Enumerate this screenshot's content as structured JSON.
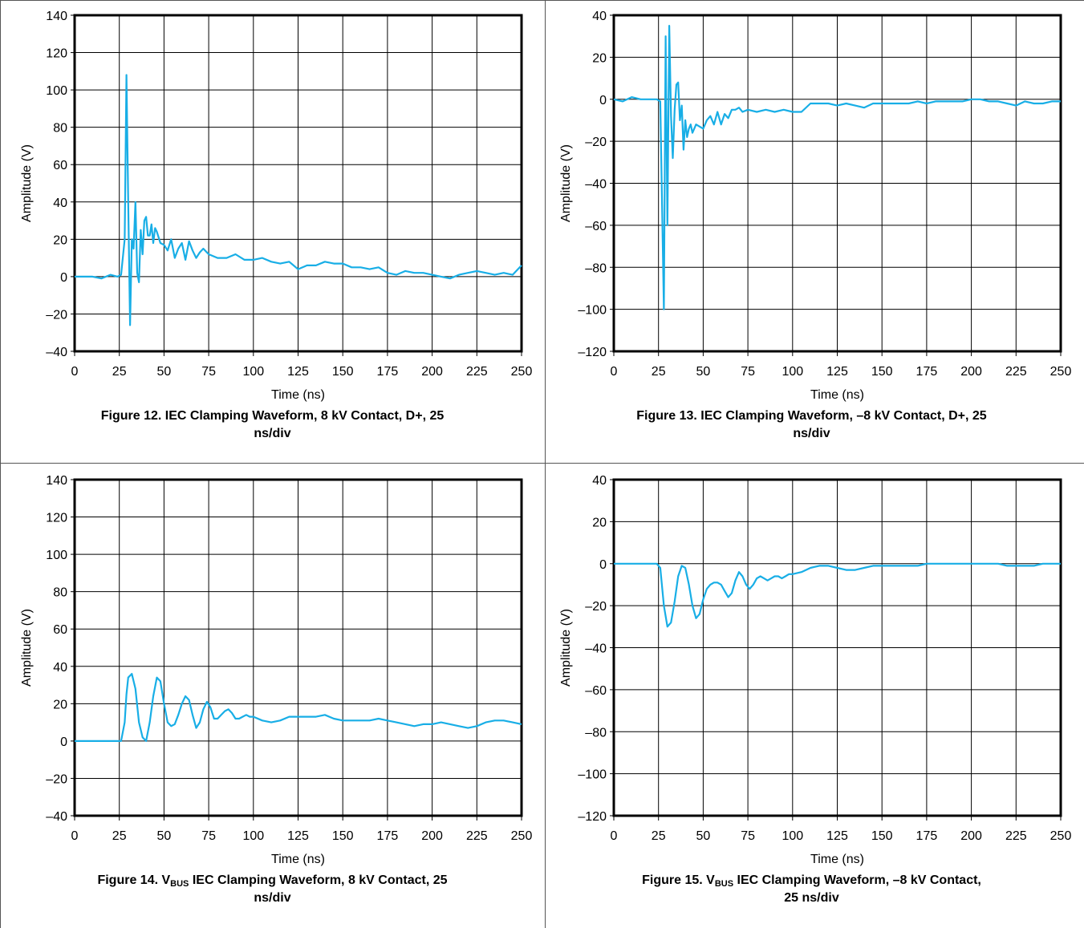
{
  "colors": {
    "trace": "#18aee6",
    "grid": "#000000",
    "frame": "#000000"
  },
  "chart_data": [
    {
      "type": "line",
      "xlabel": "Time (ns)",
      "ylabel": "Amplitude (V)",
      "xlim": [
        0,
        250
      ],
      "ylim": [
        -40,
        140
      ],
      "xticks": [
        0,
        25,
        50,
        75,
        100,
        125,
        150,
        175,
        200,
        225,
        250
      ],
      "yticks": [
        140,
        120,
        100,
        80,
        60,
        40,
        20,
        0,
        -20,
        -40
      ],
      "ytick_labels": [
        "140",
        "120",
        "100",
        "80",
        "60",
        "40",
        "20",
        "0",
        "–20",
        "–40"
      ],
      "grid": true,
      "caption": {
        "prefix": "",
        "sub": "",
        "line1": "Figure 12. IEC Clamping Waveform, 8 kV Contact, D+, 25",
        "line2": "ns/div"
      },
      "series": [
        {
          "x": [
            0,
            5,
            10,
            15,
            20,
            24,
            26,
            28,
            29,
            30,
            31,
            32,
            33,
            34,
            35,
            36,
            37,
            38,
            39,
            40,
            41,
            42,
            43,
            44,
            45,
            46,
            48,
            50,
            52,
            54,
            56,
            58,
            60,
            62,
            64,
            66,
            68,
            70,
            72,
            75,
            80,
            85,
            90,
            95,
            100,
            105,
            110,
            115,
            120,
            125,
            130,
            135,
            140,
            145,
            150,
            155,
            160,
            165,
            170,
            175,
            180,
            185,
            190,
            195,
            200,
            205,
            210,
            215,
            220,
            225,
            230,
            235,
            240,
            245,
            248,
            250
          ],
          "y": [
            0,
            0,
            0,
            -1,
            1,
            0,
            1,
            20,
            108,
            40,
            -26,
            20,
            15,
            40,
            2,
            -3,
            25,
            12,
            30,
            32,
            22,
            22,
            28,
            18,
            26,
            24,
            18,
            17,
            14,
            20,
            10,
            15,
            18,
            9,
            19,
            14,
            10,
            13,
            15,
            12,
            10,
            10,
            12,
            9,
            9,
            10,
            8,
            7,
            8,
            4,
            6,
            6,
            8,
            7,
            7,
            5,
            5,
            4,
            5,
            2,
            1,
            3,
            2,
            2,
            1,
            0,
            -1,
            1,
            2,
            3,
            2,
            1,
            2,
            1,
            4,
            6
          ]
        }
      ]
    },
    {
      "type": "line",
      "xlabel": "Time (ns)",
      "ylabel": "Amplitude (V)",
      "xlim": [
        0,
        250
      ],
      "ylim": [
        -120,
        40
      ],
      "xticks": [
        0,
        25,
        50,
        75,
        100,
        125,
        150,
        175,
        200,
        225,
        250
      ],
      "yticks": [
        40,
        20,
        0,
        -20,
        -40,
        -60,
        -80,
        -100,
        -120
      ],
      "ytick_labels": [
        "40",
        "20",
        "0",
        "–20",
        "–40",
        "–60",
        "–80",
        "–100",
        "–120"
      ],
      "grid": true,
      "caption": {
        "prefix": "",
        "sub": "",
        "line1": "Figure 13. IEC Clamping Waveform, –8 kV Contact, D+, 25",
        "line2": "ns/div"
      },
      "series": [
        {
          "x": [
            0,
            5,
            10,
            15,
            20,
            24,
            26,
            28,
            29,
            30,
            31,
            32,
            33,
            34,
            35,
            36,
            37,
            38,
            39,
            40,
            41,
            42,
            43,
            44,
            46,
            48,
            50,
            52,
            54,
            56,
            58,
            60,
            62,
            64,
            66,
            68,
            70,
            72,
            75,
            80,
            85,
            90,
            95,
            100,
            105,
            110,
            115,
            120,
            125,
            130,
            135,
            140,
            145,
            150,
            155,
            160,
            165,
            170,
            175,
            180,
            185,
            190,
            195,
            200,
            205,
            210,
            215,
            220,
            225,
            230,
            235,
            240,
            245,
            250
          ],
          "y": [
            0,
            -1,
            1,
            0,
            0,
            0,
            -1,
            -100,
            30,
            -60,
            35,
            -8,
            -28,
            -5,
            7,
            8,
            -10,
            -3,
            -24,
            -10,
            -18,
            -14,
            -12,
            -16,
            -12,
            -13,
            -14,
            -10,
            -8,
            -12,
            -6,
            -12,
            -7,
            -9,
            -5,
            -5,
            -4,
            -6,
            -5,
            -6,
            -5,
            -6,
            -5,
            -6,
            -6,
            -2,
            -2,
            -2,
            -3,
            -2,
            -3,
            -4,
            -2,
            -2,
            -2,
            -2,
            -2,
            -1,
            -2,
            -1,
            -1,
            -1,
            -1,
            0,
            0,
            -1,
            -1,
            -2,
            -3,
            -1,
            -2,
            -2,
            -1,
            -1
          ]
        }
      ]
    },
    {
      "type": "line",
      "xlabel": "Time (ns)",
      "ylabel": "Amplitude (V)",
      "xlim": [
        0,
        250
      ],
      "ylim": [
        -40,
        140
      ],
      "xticks": [
        0,
        25,
        50,
        75,
        100,
        125,
        150,
        175,
        200,
        225,
        250
      ],
      "yticks": [
        140,
        120,
        100,
        80,
        60,
        40,
        20,
        0,
        -20,
        -40
      ],
      "ytick_labels": [
        "140",
        "120",
        "100",
        "80",
        "60",
        "40",
        "20",
        "0",
        "–20",
        "–40"
      ],
      "grid": true,
      "caption": {
        "prefix": "Figure 14. V",
        "sub": "BUS",
        "line1": " IEC Clamping Waveform, 8 kV Contact, 25",
        "line2": "ns/div"
      },
      "series": [
        {
          "x": [
            0,
            5,
            10,
            15,
            20,
            24,
            26,
            28,
            29,
            30,
            32,
            34,
            36,
            38,
            40,
            42,
            44,
            46,
            48,
            50,
            52,
            54,
            56,
            58,
            60,
            62,
            64,
            66,
            68,
            70,
            72,
            74,
            76,
            78,
            80,
            82,
            84,
            86,
            88,
            90,
            92,
            94,
            96,
            98,
            100,
            105,
            110,
            115,
            120,
            125,
            130,
            135,
            140,
            145,
            150,
            155,
            160,
            165,
            170,
            175,
            180,
            185,
            190,
            195,
            200,
            205,
            210,
            215,
            220,
            225,
            230,
            235,
            240,
            245,
            250
          ],
          "y": [
            0,
            0,
            0,
            0,
            0,
            0,
            0,
            10,
            25,
            34,
            36,
            28,
            10,
            2,
            0,
            10,
            24,
            34,
            32,
            20,
            10,
            8,
            9,
            14,
            20,
            24,
            22,
            14,
            7,
            10,
            17,
            21,
            18,
            12,
            12,
            14,
            16,
            17,
            15,
            12,
            12,
            13,
            14,
            13,
            13,
            11,
            10,
            11,
            13,
            13,
            13,
            13,
            14,
            12,
            11,
            11,
            11,
            11,
            12,
            11,
            10,
            9,
            8,
            9,
            9,
            10,
            9,
            8,
            7,
            8,
            10,
            11,
            11,
            10,
            9
          ]
        }
      ]
    },
    {
      "type": "line",
      "xlabel": "Time (ns)",
      "ylabel": "Amplitude (V)",
      "xlim": [
        0,
        250
      ],
      "ylim": [
        -120,
        40
      ],
      "xticks": [
        0,
        25,
        50,
        75,
        100,
        125,
        150,
        175,
        200,
        225,
        250
      ],
      "yticks": [
        40,
        20,
        0,
        -20,
        -40,
        -60,
        -80,
        -100,
        -120
      ],
      "ytick_labels": [
        "40",
        "20",
        "0",
        "–20",
        "–40",
        "–60",
        "–80",
        "–100",
        "–120"
      ],
      "grid": true,
      "caption": {
        "prefix": "Figure 15. V",
        "sub": "BUS",
        "line1": " IEC Clamping Waveform, –8 kV Contact,",
        "line2": "25 ns/div"
      },
      "series": [
        {
          "x": [
            0,
            5,
            10,
            15,
            20,
            24,
            26,
            28,
            30,
            32,
            34,
            36,
            38,
            40,
            42,
            44,
            46,
            48,
            50,
            52,
            54,
            56,
            58,
            60,
            62,
            64,
            66,
            68,
            70,
            72,
            74,
            76,
            78,
            80,
            82,
            84,
            86,
            88,
            90,
            92,
            94,
            96,
            98,
            100,
            105,
            110,
            115,
            120,
            125,
            130,
            135,
            140,
            145,
            150,
            155,
            160,
            165,
            170,
            175,
            180,
            185,
            190,
            195,
            200,
            205,
            210,
            215,
            220,
            225,
            230,
            235,
            240,
            245,
            250
          ],
          "y": [
            0,
            0,
            0,
            0,
            0,
            0,
            -2,
            -20,
            -30,
            -28,
            -18,
            -6,
            -1,
            -2,
            -10,
            -20,
            -26,
            -24,
            -17,
            -12,
            -10,
            -9,
            -9,
            -10,
            -13,
            -16,
            -14,
            -8,
            -4,
            -6,
            -10,
            -12,
            -10,
            -7,
            -6,
            -7,
            -8,
            -7,
            -6,
            -6,
            -7,
            -6,
            -5,
            -5,
            -4,
            -2,
            -1,
            -1,
            -2,
            -3,
            -3,
            -2,
            -1,
            -1,
            -1,
            -1,
            -1,
            -1,
            0,
            0,
            0,
            0,
            0,
            0,
            0,
            0,
            0,
            -1,
            -1,
            -1,
            -1,
            0,
            0,
            0
          ]
        }
      ]
    }
  ]
}
